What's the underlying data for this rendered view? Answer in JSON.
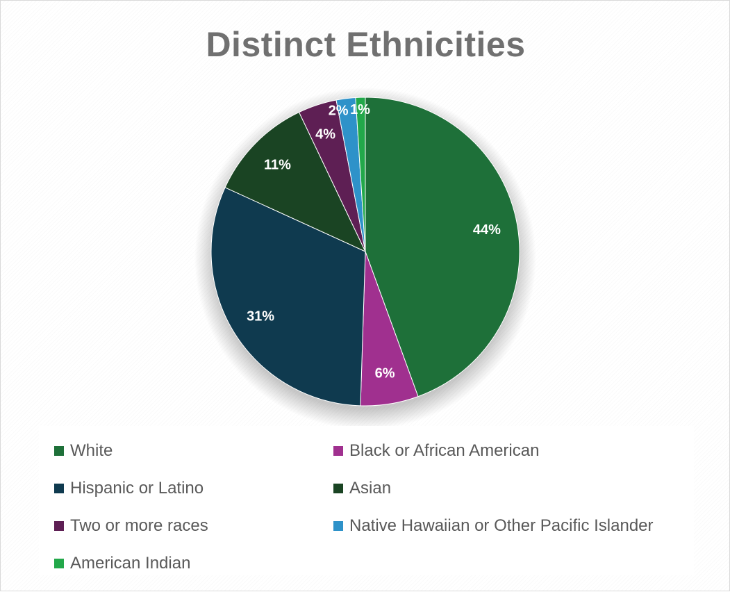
{
  "chart_data": {
    "type": "pie",
    "title": "Distinct Ethnicities",
    "slices": [
      {
        "label": "White",
        "value": 44,
        "display": "44%",
        "color": "#1e7039"
      },
      {
        "label": "Black or African American",
        "value": 6,
        "display": "6%",
        "color": "#a0308f"
      },
      {
        "label": "Hispanic or Latino",
        "value": 31,
        "display": "31%",
        "color": "#0f3a4f"
      },
      {
        "label": "Asian",
        "value": 11,
        "display": "11%",
        "color": "#1a4423"
      },
      {
        "label": "Two or more races",
        "value": 4,
        "display": "4%",
        "color": "#5e1f54"
      },
      {
        "label": "Native Hawaiian or Other Pacific Islander",
        "value": 2,
        "display": "2%",
        "color": "#2e92c9"
      },
      {
        "label": "American Indian",
        "value": 1,
        "display": "1%",
        "color": "#22a84a"
      }
    ],
    "legend_position": "bottom"
  }
}
